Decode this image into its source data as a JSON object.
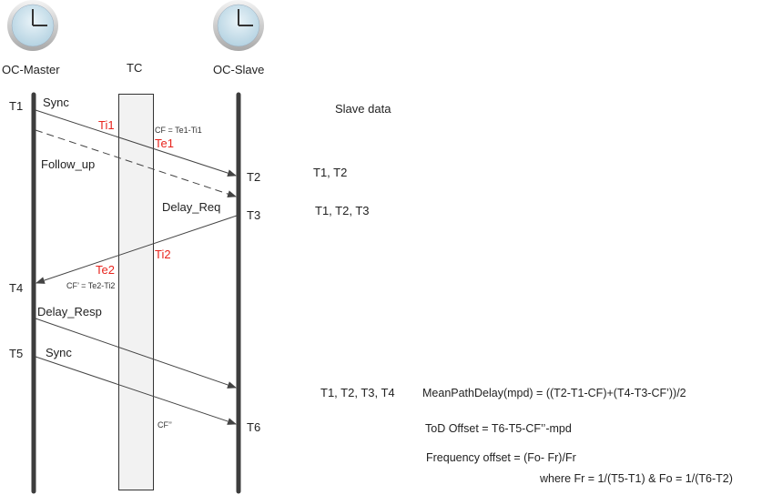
{
  "colors": {
    "timestamp_red": "#e8241d",
    "lifeline": "#3d3d3d",
    "tc_fill": "#f2f2f2"
  },
  "icons": [
    "clock-icon",
    "clock-icon"
  ],
  "nodes": {
    "master": "OC-Master",
    "tc": "TC",
    "slave": "OC-Slave"
  },
  "timestamps": {
    "t1": "T1",
    "t2": "T2",
    "t3": "T3",
    "t4": "T4",
    "t5": "T5",
    "t6": "T6"
  },
  "messages": {
    "sync1": "Sync",
    "follow_up": "Follow_up",
    "delay_req": "Delay_Req",
    "delay_resp": "Delay_Resp",
    "sync2": "Sync"
  },
  "tc_marks": {
    "ti1": "Ti1",
    "te1": "Te1",
    "cf": "CF = Te1-Ti1",
    "ti2": "Ti2",
    "te2": "Te2",
    "cf_prime": "CF’ = Te2-Ti2",
    "cf_dprime": "CF’’"
  },
  "slave_data": {
    "title": "Slave data",
    "row1": "T1, T2",
    "row2": "T1, T2, T3",
    "row3": "T1, T2, T3, T4"
  },
  "equations": {
    "mpd": "MeanPathDelay(mpd) = ((T2-T1-CF)+(T4-T3-CF’))/2",
    "tod": "ToD Offset = T6-T5-CF’’-mpd",
    "freq": "Frequency offset = (Fo- Fr)/Fr",
    "where": "where Fr = 1/(T5-T1) & Fo = 1/(T6-T2)"
  }
}
